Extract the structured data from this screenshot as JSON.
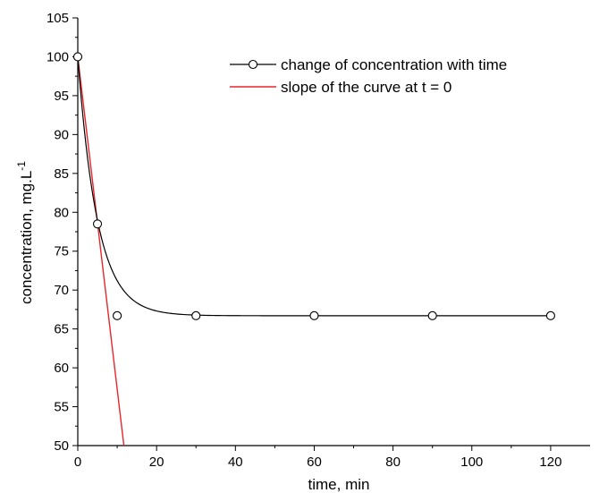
{
  "chart_data": {
    "type": "line",
    "xlabel": "time, min",
    "ylabel": "concentration, mg.L",
    "ylabel_superscript": "-1",
    "xlim": [
      0,
      130
    ],
    "ylim": [
      50,
      105
    ],
    "x_ticks": [
      0,
      20,
      40,
      60,
      80,
      100,
      120
    ],
    "y_ticks": [
      50,
      55,
      60,
      65,
      70,
      75,
      80,
      85,
      90,
      95,
      100,
      105
    ],
    "grid": false,
    "legend_position": "top-right",
    "series": [
      {
        "name": "change of concentration with time",
        "style": "line-with-open-circles",
        "color": "#000000",
        "points": [
          {
            "x": 0,
            "y": 100
          },
          {
            "x": 5,
            "y": 78.5
          },
          {
            "x": 10,
            "y": 66.7
          },
          {
            "x": 30,
            "y": 66.7
          },
          {
            "x": 60,
            "y": 66.7
          },
          {
            "x": 90,
            "y": 66.7
          },
          {
            "x": 120,
            "y": 66.7
          }
        ],
        "fitted_curve": {
          "model": "exponential-decay",
          "y0": 100,
          "plateau": 66.7,
          "rate_per_min": 0.2,
          "x_range": [
            0,
            120
          ]
        }
      },
      {
        "name": "slope of the curve at  t = 0",
        "style": "line",
        "color": "#e8262b",
        "points": [
          {
            "x": 0,
            "y": 100
          },
          {
            "x": 11.7,
            "y": 50
          }
        ]
      }
    ]
  }
}
